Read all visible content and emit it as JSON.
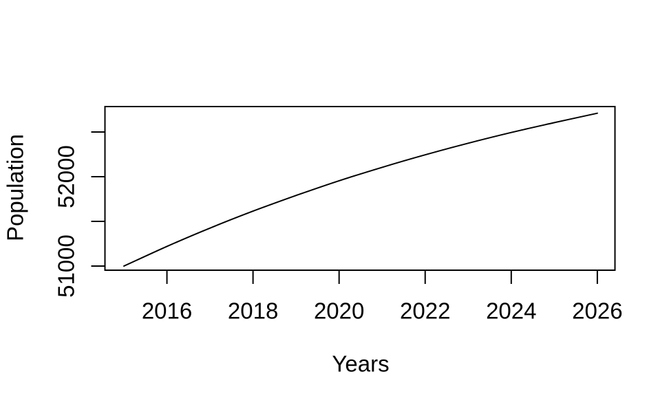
{
  "figure": {
    "background_color": "#ffffff",
    "foreground_color": "#000000"
  },
  "chart_data": {
    "type": "line",
    "title": "",
    "xlabel": "Years",
    "ylabel": "Population",
    "grid": false,
    "legend": "none",
    "xlim": [
      2014.56,
      2026.41
    ],
    "ylim": [
      50954,
      52785
    ],
    "x": [
      2015,
      2016,
      2017,
      2018,
      2019,
      2020,
      2021,
      2022,
      2023,
      2024,
      2025,
      2026
    ],
    "series": [
      {
        "name": "population",
        "values": [
          51000,
          51220,
          51425,
          51615,
          51790,
          51955,
          52105,
          52245,
          52375,
          52495,
          52605,
          52710
        ]
      }
    ],
    "x_ticks": [
      {
        "value": 2016,
        "label": "2016"
      },
      {
        "value": 2018,
        "label": "2018"
      },
      {
        "value": 2020,
        "label": "2020"
      },
      {
        "value": 2022,
        "label": "2022"
      },
      {
        "value": 2024,
        "label": "2024"
      },
      {
        "value": 2026,
        "label": "2026"
      }
    ],
    "y_ticks": [
      {
        "value": 51000,
        "label": "51000"
      },
      {
        "value": 51500,
        "label": ""
      },
      {
        "value": 52000,
        "label": "52000"
      },
      {
        "value": 52500,
        "label": ""
      }
    ],
    "line_color": "#000000",
    "line_width": 2
  }
}
